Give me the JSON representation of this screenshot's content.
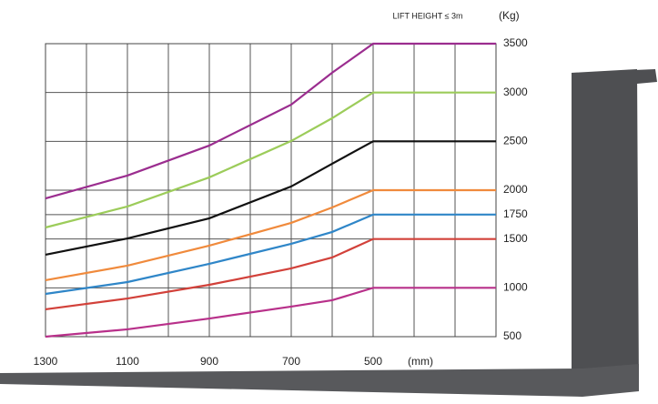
{
  "chart_data": {
    "type": "line",
    "title": "LIFT HEIGHT ≤ 3m",
    "y_label": "(Kg)",
    "x_label": "(mm)",
    "x": [
      1300,
      1100,
      900,
      700,
      600,
      500,
      200
    ],
    "series": [
      {
        "color": "#9b2d8f",
        "values": [
          1916,
          2150,
          2457,
          2876,
          3203,
          3500,
          3500
        ]
      },
      {
        "color": "#9ccc5a",
        "values": [
          1618,
          1833,
          2131,
          2504,
          2737,
          3000,
          3000
        ]
      },
      {
        "color": "#111111",
        "values": [
          1339,
          1506,
          1712,
          2038,
          2271,
          2500,
          2500
        ]
      },
      {
        "color": "#f08a3c",
        "values": [
          1078,
          1227,
          1432,
          1665,
          1823,
          2000,
          2000
        ]
      },
      {
        "color": "#2f86c8",
        "values": [
          938,
          1059,
          1246,
          1451,
          1572,
          1750,
          1750
        ]
      },
      {
        "color": "#d2413a",
        "values": [
          780,
          891,
          1031,
          1199,
          1311,
          1500,
          1500
        ]
      },
      {
        "color": "#b8308a",
        "values": [
          500,
          575,
          686,
          808,
          873,
          1000,
          1000
        ]
      }
    ],
    "xlim": [
      1300,
      200
    ],
    "ylim": [
      500,
      3500
    ],
    "xticks": [
      1300,
      {
        "value": 1200,
        "label": null
      },
      1100,
      {
        "value": 1000,
        "label": null
      },
      900,
      {
        "value": 800,
        "label": null
      },
      700,
      {
        "value": 600,
        "label": null
      },
      500,
      {
        "value": 400,
        "label": null
      },
      {
        "value": 300,
        "label": null
      },
      {
        "value": 200,
        "label": null
      }
    ],
    "yticks": [
      500,
      1000,
      1500,
      1750,
      2000,
      2500,
      3000,
      3500
    ],
    "grid": true
  }
}
